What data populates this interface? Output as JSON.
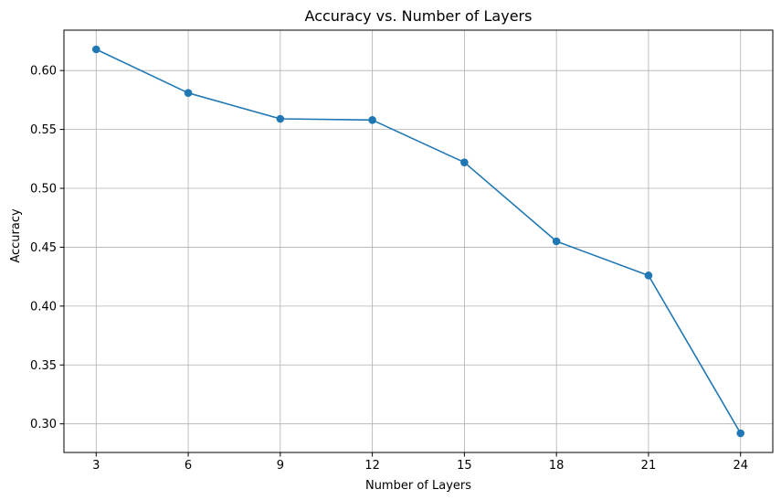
{
  "chart_data": {
    "type": "line",
    "title": "Accuracy vs. Number of Layers",
    "xlabel": "Number of Layers",
    "ylabel": "Accuracy",
    "x": [
      3,
      6,
      9,
      12,
      15,
      18,
      21,
      24
    ],
    "series": [
      {
        "values": [
          0.618,
          0.581,
          0.559,
          0.558,
          0.522,
          0.455,
          0.426,
          0.292
        ],
        "color": "#1f77b4",
        "marker": "circle"
      }
    ],
    "xticks": [
      3,
      6,
      9,
      12,
      15,
      18,
      21,
      24
    ],
    "yticks": [
      0.3,
      0.35,
      0.4,
      0.45,
      0.5,
      0.55,
      0.6
    ],
    "ytick_labels": [
      "0.30",
      "0.35",
      "0.40",
      "0.45",
      "0.50",
      "0.55",
      "0.60"
    ],
    "xlim": [
      1.95,
      25.05
    ],
    "ylim": [
      0.2757,
      0.6343
    ],
    "grid": true
  }
}
